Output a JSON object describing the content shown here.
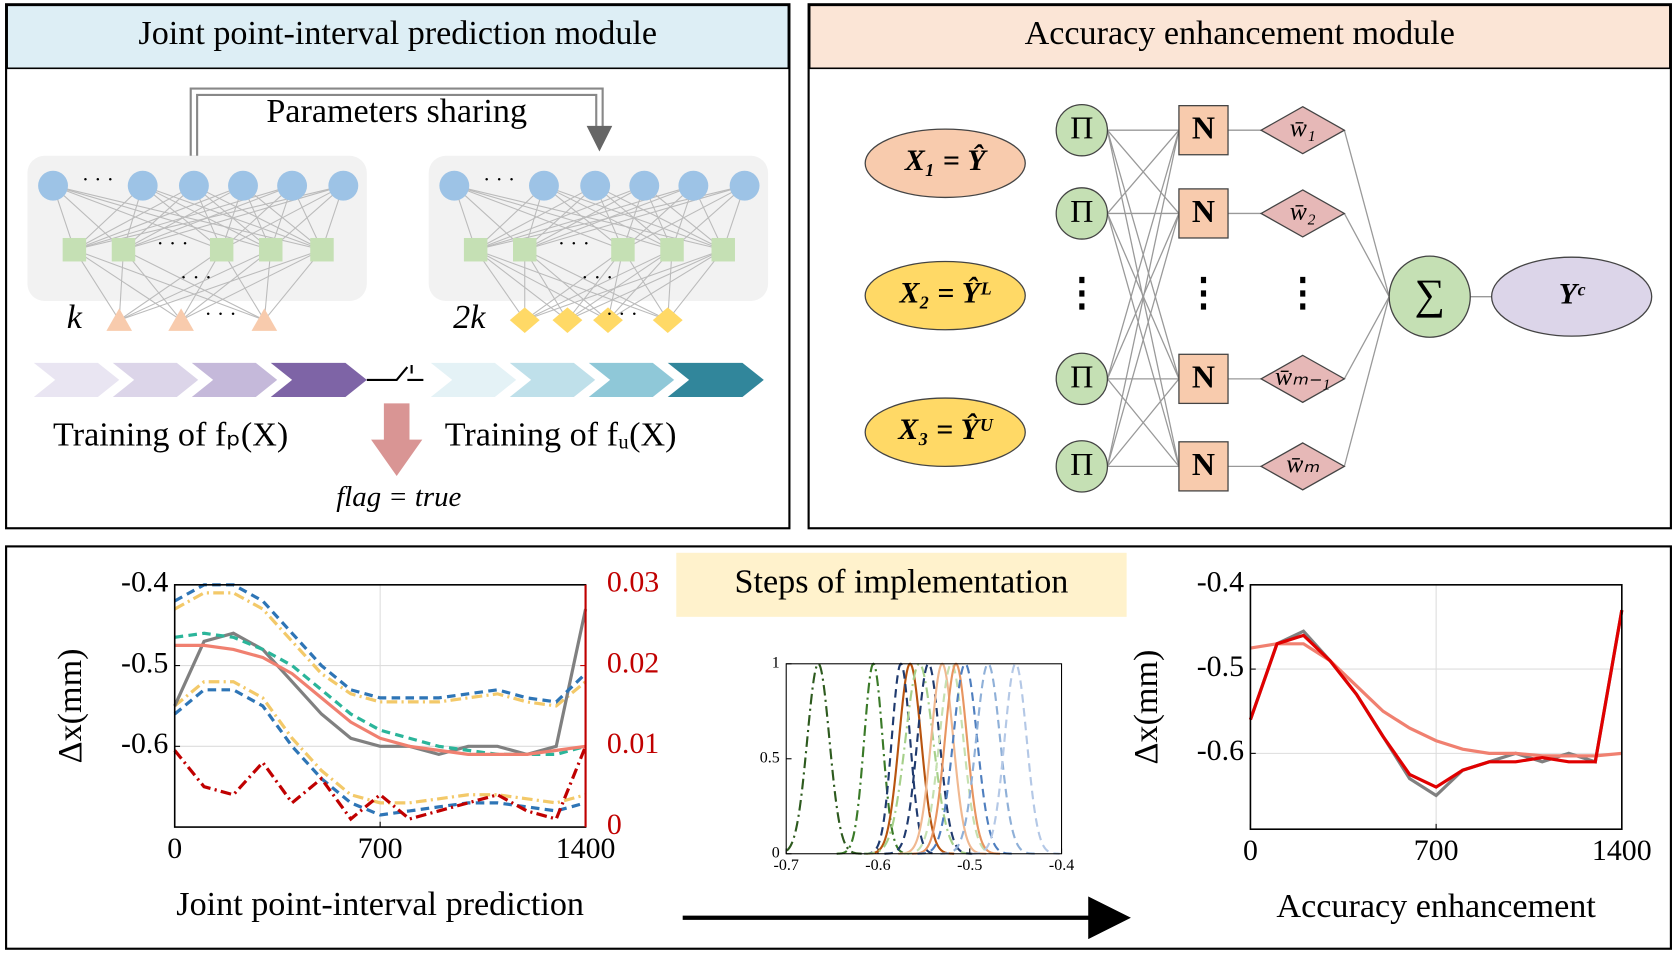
{
  "left_module": {
    "title": "Joint point-interval prediction module",
    "sharing": "Parameters sharing",
    "k1": "k",
    "k2": "2k",
    "train_p": "Training of  fₚ(X)",
    "train_u": "Training of  fᵤ(X)",
    "flag": "flag = true"
  },
  "right_module": {
    "title": "Accuracy enhancement module",
    "inputs": [
      "X₁ = Ŷ",
      "X₂ = Ŷᴸ",
      "X₃ = Ŷᵁ"
    ],
    "pi_nodes": [
      "Π",
      "Π",
      "Π",
      "Π"
    ],
    "n_nodes": [
      "N",
      "N",
      "N",
      "N"
    ],
    "weights": [
      "w̄₁",
      "w̄₂",
      "w̄ₘ₋₁",
      "w̄ₘ"
    ],
    "ellipsis": [
      "⋮",
      "⋮",
      "⋮"
    ],
    "sum": "∑",
    "output": "Yᶜ"
  },
  "steps_title": "Steps of implementation",
  "chart_data": [
    {
      "type": "line",
      "xlabel": "Joint point-interval prediction",
      "ylabel": "Δx(mm)",
      "x": [
        0,
        100,
        200,
        300,
        400,
        500,
        600,
        700,
        800,
        900,
        1000,
        1100,
        1200,
        1300,
        1400
      ],
      "xlim": [
        0,
        1400
      ],
      "xticks": [
        0,
        700,
        1400
      ],
      "ylim": [
        -0.7,
        -0.4
      ],
      "yticks": [
        -0.4,
        -0.5,
        -0.6
      ],
      "y2lim": [
        0,
        0.03
      ],
      "y2ticks": [
        0,
        0.01,
        0.02,
        0.03
      ],
      "y2color": "#c00000",
      "grid": true,
      "series": [
        {
          "color": "#f3c969",
          "dash": "dashdot",
          "values": [
            -0.43,
            -0.41,
            -0.41,
            -0.43,
            -0.47,
            -0.51,
            -0.535,
            -0.545,
            -0.545,
            -0.545,
            -0.54,
            -0.535,
            -0.545,
            -0.55,
            -0.52
          ]
        },
        {
          "color": "#f3c969",
          "dash": "dashdot",
          "values": [
            -0.55,
            -0.52,
            -0.52,
            -0.54,
            -0.59,
            -0.63,
            -0.66,
            -0.67,
            -0.67,
            -0.665,
            -0.66,
            -0.66,
            -0.665,
            -0.67,
            -0.66
          ]
        },
        {
          "color": "#808080",
          "dash": "solid",
          "values": [
            -0.55,
            -0.47,
            -0.46,
            -0.48,
            -0.52,
            -0.56,
            -0.59,
            -0.6,
            -0.6,
            -0.61,
            -0.6,
            -0.6,
            -0.61,
            -0.6,
            -0.43
          ]
        },
        {
          "color": "#2e75b6",
          "dash": "dashed",
          "values": [
            -0.42,
            -0.4,
            -0.4,
            -0.42,
            -0.46,
            -0.5,
            -0.53,
            -0.54,
            -0.54,
            -0.54,
            -0.535,
            -0.53,
            -0.54,
            -0.545,
            -0.51
          ]
        },
        {
          "color": "#2e75b6",
          "dash": "dashed",
          "values": [
            -0.56,
            -0.53,
            -0.53,
            -0.55,
            -0.6,
            -0.64,
            -0.67,
            -0.685,
            -0.68,
            -0.675,
            -0.67,
            -0.67,
            -0.675,
            -0.68,
            -0.67
          ]
        },
        {
          "color": "#2bb59a",
          "dash": "dashed",
          "values": [
            -0.465,
            -0.46,
            -0.465,
            -0.48,
            -0.5,
            -0.53,
            -0.56,
            -0.58,
            -0.59,
            -0.6,
            -0.605,
            -0.61,
            -0.61,
            -0.61,
            -0.6
          ]
        },
        {
          "color": "#f08070",
          "dash": "solid",
          "values": [
            -0.475,
            -0.475,
            -0.48,
            -0.49,
            -0.51,
            -0.54,
            -0.57,
            -0.59,
            -0.6,
            -0.605,
            -0.61,
            -0.61,
            -0.61,
            -0.605,
            -0.6
          ]
        },
        {
          "color": "#c00000",
          "dash": "dashdot",
          "axis": "y2",
          "values": [
            0.0095,
            0.005,
            0.004,
            0.008,
            0.003,
            0.006,
            0.001,
            0.004,
            0.001,
            0.002,
            0.003,
            0.004,
            0.002,
            0.001,
            0.01
          ]
        }
      ]
    },
    {
      "type": "membership",
      "xlim": [
        -0.7,
        -0.4
      ],
      "xticks": [
        -0.7,
        -0.6,
        -0.5,
        -0.4
      ],
      "ylim": [
        0,
        1
      ],
      "yticks": [
        0,
        0.5,
        1
      ],
      "series": [
        {
          "color": "#2d5a1e",
          "dash": "dashdot",
          "center": -0.665,
          "width": 0.012
        },
        {
          "color": "#3a7a28",
          "dash": "dashdot",
          "center": -0.605,
          "width": 0.01
        },
        {
          "color": "#b8540f",
          "dash": "solid",
          "center": -0.565,
          "width": 0.012
        },
        {
          "color": "#1f3a6e",
          "dash": "dashed",
          "center": -0.575,
          "width": 0.01
        },
        {
          "color": "#a6d08a",
          "dash": "dashdot",
          "center": -0.555,
          "width": 0.015
        },
        {
          "color": "#1f3a6e",
          "dash": "dashed",
          "center": -0.545,
          "width": 0.012
        },
        {
          "color": "#f0b890",
          "dash": "solid",
          "center": -0.53,
          "width": 0.012
        },
        {
          "color": "#c5e0b0",
          "dash": "dashed",
          "center": -0.52,
          "width": 0.013
        },
        {
          "color": "#e89560",
          "dash": "solid",
          "center": -0.515,
          "width": 0.012
        },
        {
          "color": "#4f7fbf",
          "dash": "dashed",
          "center": -0.505,
          "width": 0.013
        },
        {
          "color": "#8fb0d8",
          "dash": "dashed",
          "center": -0.48,
          "width": 0.013
        },
        {
          "color": "#b4c8e6",
          "dash": "dashed",
          "center": -0.45,
          "width": 0.012
        }
      ]
    },
    {
      "type": "line",
      "xlabel": "Accuracy enhancement",
      "ylabel": "Δx(mm)",
      "x": [
        0,
        100,
        200,
        300,
        400,
        500,
        600,
        700,
        800,
        900,
        1000,
        1100,
        1200,
        1300,
        1400
      ],
      "xlim": [
        0,
        1400
      ],
      "xticks": [
        0,
        700,
        1400
      ],
      "ylim": [
        -0.69,
        -0.4
      ],
      "yticks": [
        -0.4,
        -0.5,
        -0.6
      ],
      "grid": true,
      "series": [
        {
          "color": "#808080",
          "dash": "solid",
          "values": [
            -0.56,
            -0.47,
            -0.455,
            -0.49,
            -0.53,
            -0.58,
            -0.63,
            -0.65,
            -0.62,
            -0.61,
            -0.6,
            -0.61,
            -0.6,
            -0.61,
            -0.43
          ]
        },
        {
          "color": "#f08070",
          "dash": "solid",
          "values": [
            -0.475,
            -0.47,
            -0.47,
            -0.49,
            -0.52,
            -0.55,
            -0.57,
            -0.585,
            -0.595,
            -0.6,
            -0.6,
            -0.603,
            -0.603,
            -0.603,
            -0.6
          ]
        },
        {
          "color": "#e00000",
          "dash": "solid",
          "values": [
            -0.56,
            -0.47,
            -0.46,
            -0.49,
            -0.53,
            -0.58,
            -0.625,
            -0.64,
            -0.62,
            -0.61,
            -0.61,
            -0.605,
            -0.61,
            -0.61,
            -0.43
          ]
        }
      ]
    }
  ]
}
